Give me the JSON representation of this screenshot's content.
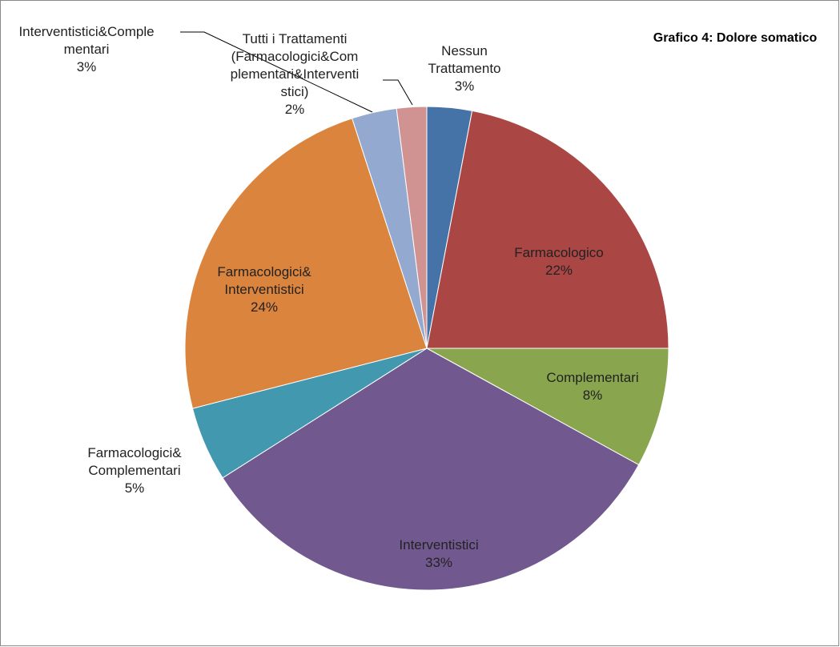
{
  "chart_data": {
    "type": "pie",
    "title": "Grafico 4: Dolore somatico",
    "categories": [
      "Nessun Trattamento",
      "Farmacologico",
      "Complementari",
      "Interventistici",
      "Farmacologici& Complementari",
      "Farmacologici& Interventistici",
      "Interventistici&Complementari",
      "Tutti i Trattamenti (Farmacologici&Complementari&Interventistici)"
    ],
    "values": [
      3,
      22,
      8,
      33,
      5,
      24,
      3,
      2
    ],
    "value_labels": [
      "3%",
      "22%",
      "8%",
      "33%",
      "5%",
      "24%",
      "3%",
      "2%"
    ],
    "colors": [
      "#4572A7",
      "#AA4643",
      "#89A54E",
      "#71588F",
      "#4198AF",
      "#DB843D",
      "#93A9CF",
      "#D19392"
    ]
  }
}
